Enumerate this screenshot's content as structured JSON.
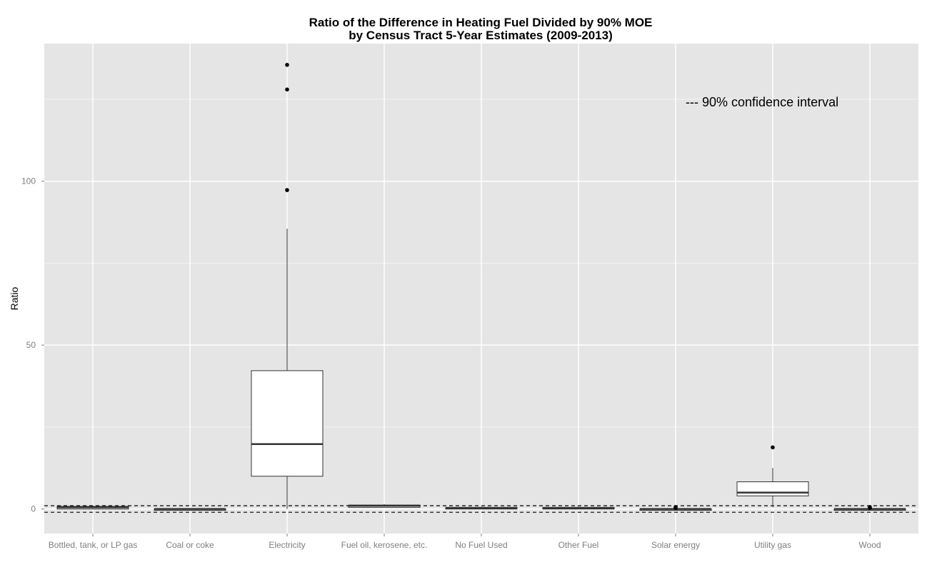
{
  "chart_data": {
    "type": "box",
    "title_line1": "Ratio of the Difference in Heating Fuel Divided by 90% MOE",
    "title_line2": "by Census Tract 5-Year Estimates (2009-2013)",
    "xlabel": "",
    "ylabel": "Ratio",
    "ylim": [
      -7.5,
      142
    ],
    "yticks": [
      0,
      50,
      100
    ],
    "grid": true,
    "annotation": "--- 90% confidence interval",
    "reference_lines": [
      1,
      -1
    ],
    "categories": [
      "Bottled, tank, or LP gas",
      "Coal or coke",
      "Electricity",
      "Fuel oil, kerosene, etc.",
      "No Fuel Used",
      "Other Fuel",
      "Solar energy",
      "Utility gas",
      "Wood"
    ],
    "boxes": [
      {
        "min": 0.0,
        "q1": 0.0,
        "median": 0.5,
        "q3": 0.8,
        "max": 1.0,
        "outliers": []
      },
      {
        "min": 0.0,
        "q1": 0.0,
        "median": 0.0,
        "q3": 0.0,
        "max": 0.0,
        "outliers": []
      },
      {
        "min": 0.0,
        "q1": 10.0,
        "median": 19.8,
        "q3": 42.2,
        "max": 85.5,
        "outliers": [
          97.3,
          128.0,
          135.5
        ]
      },
      {
        "min": 0.5,
        "q1": 0.5,
        "median": 1.0,
        "q3": 1.2,
        "max": 1.5,
        "outliers": []
      },
      {
        "min": 0.0,
        "q1": 0.0,
        "median": 0.2,
        "q3": 0.5,
        "max": 0.7,
        "outliers": []
      },
      {
        "min": 0.0,
        "q1": 0.0,
        "median": 0.2,
        "q3": 0.5,
        "max": 0.7,
        "outliers": []
      },
      {
        "min": 0.0,
        "q1": 0.0,
        "median": 0.0,
        "q3": 0.0,
        "max": 0.0,
        "outliers": [
          0.3,
          0.6
        ]
      },
      {
        "min": 0.5,
        "q1": 4.0,
        "median": 5.0,
        "q3": 8.3,
        "max": 12.5,
        "outliers": [
          18.8
        ]
      },
      {
        "min": 0.0,
        "q1": 0.0,
        "median": 0.0,
        "q3": 0.0,
        "max": 0.0,
        "outliers": [
          0.3,
          0.6
        ]
      }
    ],
    "colors": {
      "panel": "#e5e5e5",
      "grid_major": "#ffffff",
      "grid_minor": "#f2f2f2",
      "box_fill": "#ffffff",
      "box_stroke": "#333333",
      "median": "#333333",
      "outlier": "#000000",
      "ref_line": "#000000"
    }
  }
}
